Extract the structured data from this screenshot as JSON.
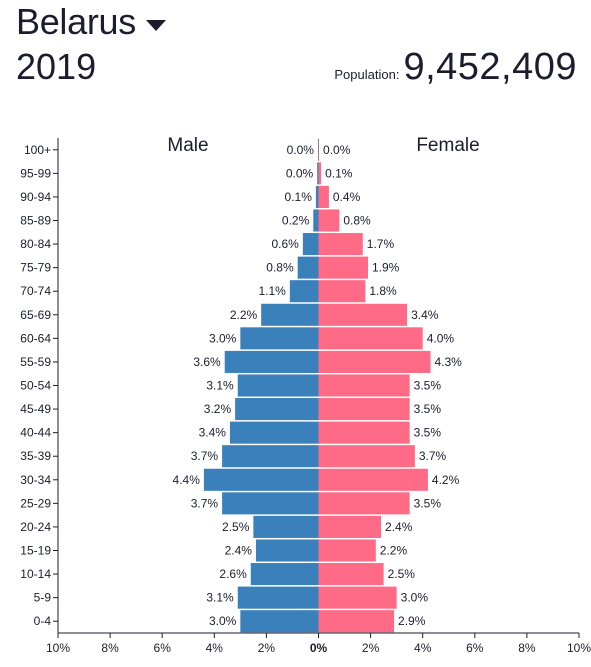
{
  "header": {
    "country": "Belarus",
    "year": "2019",
    "population_label": "Population:",
    "population_value": "9,452,409"
  },
  "chart_data": {
    "type": "bar",
    "orientation": "horizontal-population-pyramid",
    "title": "",
    "categories": [
      "100+",
      "95-99",
      "90-94",
      "85-89",
      "80-84",
      "75-79",
      "70-74",
      "65-69",
      "60-64",
      "55-59",
      "50-54",
      "45-49",
      "40-44",
      "35-39",
      "30-34",
      "25-29",
      "20-24",
      "15-19",
      "10-14",
      "5-9",
      "0-4"
    ],
    "series": [
      {
        "name": "Male",
        "color": "#3a80ba",
        "values": [
          0.02,
          0.05,
          0.1,
          0.2,
          0.6,
          0.8,
          1.1,
          2.2,
          3.0,
          3.6,
          3.1,
          3.2,
          3.4,
          3.7,
          4.4,
          3.7,
          2.5,
          2.4,
          2.6,
          3.1,
          3.0
        ],
        "labels": [
          "0.0%",
          "0.0%",
          "0.1%",
          "0.2%",
          "0.6%",
          "0.8%",
          "1.1%",
          "2.2%",
          "3.0%",
          "3.6%",
          "3.1%",
          "3.2%",
          "3.4%",
          "3.7%",
          "4.4%",
          "3.7%",
          "2.5%",
          "2.4%",
          "2.6%",
          "3.1%",
          "3.0%"
        ]
      },
      {
        "name": "Female",
        "color": "#ff6b86",
        "values": [
          0.02,
          0.1,
          0.4,
          0.8,
          1.7,
          1.9,
          1.8,
          3.4,
          4.0,
          4.3,
          3.5,
          3.5,
          3.5,
          3.7,
          4.2,
          3.5,
          2.4,
          2.2,
          2.5,
          3.0,
          2.9
        ],
        "labels": [
          "0.0%",
          "0.1%",
          "0.4%",
          "0.8%",
          "1.7%",
          "1.9%",
          "1.8%",
          "3.4%",
          "4.0%",
          "4.3%",
          "3.5%",
          "3.5%",
          "3.5%",
          "3.7%",
          "4.2%",
          "3.5%",
          "2.4%",
          "2.2%",
          "2.5%",
          "3.0%",
          "2.9%"
        ]
      }
    ],
    "xlim": [
      -10,
      10
    ],
    "x_ticks": [
      "10%",
      "8%",
      "6%",
      "4%",
      "2%",
      "0%",
      "2%",
      "4%",
      "6%",
      "8%",
      "10%"
    ],
    "grid": false,
    "legend": "top, inside plot (Male left, Female right)"
  }
}
